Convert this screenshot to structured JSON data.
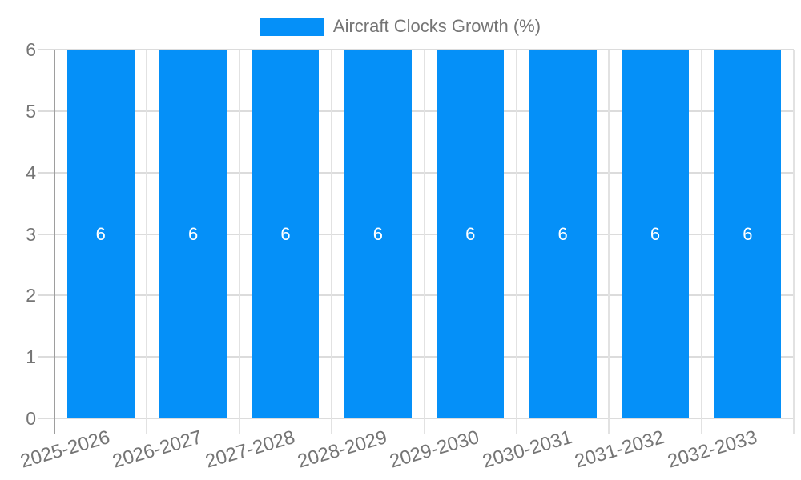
{
  "chart_data": {
    "type": "bar",
    "title": "Aircraft Clocks Growth (%)",
    "xlabel": "",
    "ylabel": "",
    "categories": [
      "2025-2026",
      "2026-2027",
      "2027-2028",
      "2028-2029",
      "2029-2030",
      "2030-2031",
      "2031-2032",
      "2032-2033"
    ],
    "series": [
      {
        "name": "Aircraft Clocks Growth (%)",
        "values": [
          6,
          6,
          6,
          6,
          6,
          6,
          6,
          6
        ],
        "color": "#0590f8"
      }
    ],
    "ylim": [
      0,
      6
    ],
    "y_ticks": [
      0,
      1,
      2,
      3,
      4,
      5,
      6
    ],
    "grid": true,
    "legend_position": "top",
    "value_labels": [
      "6",
      "6",
      "6",
      "6",
      "6",
      "6",
      "6",
      "6"
    ],
    "value_label_color": "#ffffff",
    "axis_text_color": "#757575",
    "gridline_color": "#dcdcdc",
    "axis_line_color": "#9e9e9e"
  }
}
